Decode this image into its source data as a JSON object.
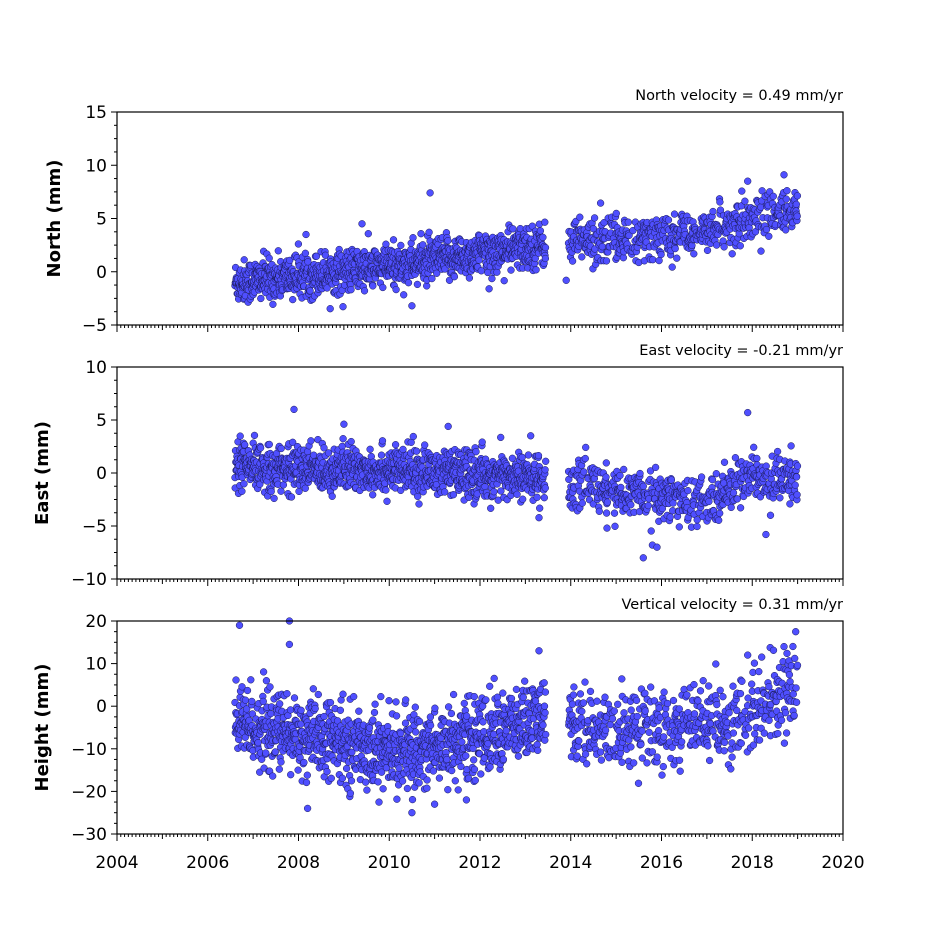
{
  "chart_data": [
    {
      "type": "scatter",
      "title": "North velocity = 0.49 mm/yr",
      "xlabel": "",
      "ylabel": "North (mm)",
      "xlim": [
        2004,
        2020
      ],
      "ylim": [
        -5,
        15
      ],
      "xticks": [
        "2004",
        "2006",
        "2008",
        "2010",
        "2012",
        "2014",
        "2016",
        "2018",
        "2020"
      ],
      "yticks": [
        "−5",
        "0",
        "5",
        "10",
        "15"
      ],
      "point_color": "#4f4fff",
      "velocity_mm_per_yr": 0.49,
      "data_span": [
        2006.6,
        2019.0
      ],
      "data_gap": [
        2013.45,
        2013.95
      ],
      "trend": [
        [
          2006.6,
          -1.0
        ],
        [
          2010.0,
          0.5
        ],
        [
          2013.4,
          2.5
        ],
        [
          2014.0,
          2.8
        ],
        [
          2016.0,
          3.2
        ],
        [
          2017.5,
          4.3
        ],
        [
          2019.0,
          6.0
        ]
      ],
      "scatter_sd_mm": 1.0,
      "outliers": [
        [
          2010.9,
          7.4
        ],
        [
          2017.9,
          8.5
        ],
        [
          2018.7,
          9.1
        ],
        [
          2009.4,
          4.5
        ],
        [
          2010.5,
          -3.2
        ],
        [
          2013.9,
          -0.8
        ],
        [
          2012.2,
          -1.6
        ]
      ]
    },
    {
      "type": "scatter",
      "title": "East velocity = -0.21 mm/yr",
      "xlabel": "",
      "ylabel": "East (mm)",
      "xlim": [
        2004,
        2020
      ],
      "ylim": [
        -10,
        10
      ],
      "xticks": [
        "2004",
        "2006",
        "2008",
        "2010",
        "2012",
        "2014",
        "2016",
        "2018",
        "2020"
      ],
      "yticks": [
        "−10",
        "−5",
        "0",
        "5",
        "10"
      ],
      "point_color": "#4f4fff",
      "velocity_mm_per_yr": -0.21,
      "data_span": [
        2006.6,
        2019.0
      ],
      "data_gap": [
        2013.45,
        2013.95
      ],
      "trend": [
        [
          2006.6,
          0.5
        ],
        [
          2010.0,
          0.3
        ],
        [
          2013.4,
          -0.5
        ],
        [
          2014.0,
          -1.0
        ],
        [
          2015.5,
          -2.0
        ],
        [
          2016.5,
          -2.5
        ],
        [
          2017.3,
          -2.5
        ],
        [
          2017.8,
          0.0
        ],
        [
          2018.3,
          -1.0
        ],
        [
          2019.0,
          -0.5
        ]
      ],
      "scatter_sd_mm": 1.1,
      "outliers": [
        [
          2007.9,
          6.0
        ],
        [
          2017.9,
          5.7
        ],
        [
          2011.3,
          4.4
        ],
        [
          2009.0,
          4.6
        ],
        [
          2015.6,
          -8.0
        ],
        [
          2015.8,
          -6.8
        ],
        [
          2015.9,
          -7.0
        ],
        [
          2018.3,
          -5.8
        ],
        [
          2014.8,
          -5.2
        ]
      ]
    },
    {
      "type": "scatter",
      "title": "Vertical velocity = 0.31 mm/yr",
      "xlabel": "",
      "ylabel": "Height (mm)",
      "xlim": [
        2004,
        2020
      ],
      "ylim": [
        -30,
        20
      ],
      "xticks": [
        "2004",
        "2006",
        "2008",
        "2010",
        "2012",
        "2014",
        "2016",
        "2018",
        "2020"
      ],
      "yticks": [
        "−30",
        "−20",
        "−10",
        "0",
        "10",
        "20"
      ],
      "point_color": "#4f4fff",
      "velocity_mm_per_yr": 0.31,
      "data_span": [
        2006.6,
        2019.0
      ],
      "data_gap": [
        2013.45,
        2013.95
      ],
      "trend": [
        [
          2006.6,
          -4.0
        ],
        [
          2008.0,
          -7.0
        ],
        [
          2010.3,
          -11.0
        ],
        [
          2012.0,
          -7.0
        ],
        [
          2013.4,
          -3.0
        ],
        [
          2014.0,
          -5.0
        ],
        [
          2016.0,
          -5.0
        ],
        [
          2017.5,
          -4.0
        ],
        [
          2018.5,
          2.0
        ],
        [
          2019.0,
          5.0
        ]
      ],
      "scatter_sd_mm": 4.5,
      "outliers": [
        [
          2006.7,
          19.0
        ],
        [
          2007.8,
          20.0
        ],
        [
          2007.8,
          14.5
        ],
        [
          2008.2,
          -24.0
        ],
        [
          2010.5,
          -25.0
        ],
        [
          2011.0,
          -23.0
        ],
        [
          2011.7,
          -22.0
        ],
        [
          2018.7,
          14.0
        ],
        [
          2017.9,
          12.0
        ],
        [
          2013.3,
          13.0
        ]
      ]
    }
  ]
}
